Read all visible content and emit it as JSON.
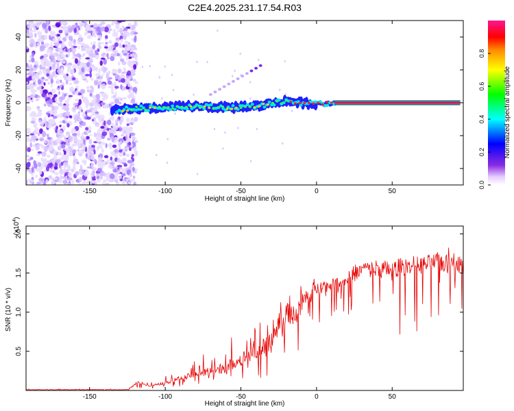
{
  "title": "C2E4.2025.231.17.54.R03",
  "colors": {
    "spectrogram_peak": "#dc143c",
    "scatter": "#6a00e8",
    "snr_line": "#e60000",
    "reference_line": "#000000"
  },
  "chart_data": [
    {
      "type": "heatmap",
      "xlabel": "Height of straight line (km)",
      "ylabel": "Frequency (Hz)",
      "xlim": [
        -192,
        97
      ],
      "ylim": [
        -50,
        50
      ],
      "x_ticks": [
        -150,
        -100,
        -50,
        0,
        50
      ],
      "y_ticks": [
        -40,
        -20,
        0,
        20,
        40
      ],
      "x_tick_labels": [
        "-150",
        "-100",
        "-50",
        "0",
        "50"
      ],
      "y_tick_labels": [
        "-40",
        "-20",
        "0",
        "20",
        "40"
      ],
      "colorbar": {
        "label": "Normalized spectral amplitude",
        "range": [
          0,
          1
        ],
        "ticks": [
          0.0,
          0.2,
          0.4,
          0.6,
          0.8
        ],
        "tick_labels": [
          "0.0",
          "0.2",
          "0.4",
          "0.6",
          "0.8"
        ],
        "colormap": "rainbow (white-violet-blue-cyan-green-yellow-red-magenta)"
      },
      "ridge": {
        "description": "main frequency trace",
        "x": [
          -135,
          -120,
          -100,
          -80,
          -60,
          -40,
          -20,
          -10,
          0,
          12,
          50,
          95
        ],
        "y": [
          -5,
          -3.5,
          -3,
          -2,
          -3,
          -2,
          1,
          0,
          -1,
          0,
          0,
          0
        ]
      },
      "reference_line": {
        "y": 0,
        "x_range": [
          12,
          95
        ]
      },
      "noise_region_x": [
        -192,
        -125
      ]
    },
    {
      "type": "line",
      "xlabel": "Height of straight line (km)",
      "ylabel": "SNR (10 * v/v)",
      "y_multiplier": "(x10",
      "y_multiplier_exp": "4",
      "y_multiplier_close": ")",
      "xlim": [
        -192,
        97
      ],
      "ylim": [
        0,
        2.1
      ],
      "x_ticks": [
        -150,
        -100,
        -50,
        0,
        50
      ],
      "y_ticks": [
        0.5,
        1.0,
        1.5,
        2.0
      ],
      "x_tick_labels": [
        "-150",
        "-100",
        "-50",
        "0",
        "50"
      ],
      "y_tick_labels": [
        "0.5",
        "1.0",
        "1.5",
        "2.0"
      ],
      "series": [
        {
          "x": [
            -192,
            -150,
            -125,
            -118,
            -110,
            -100,
            -90,
            -80,
            -70,
            -60,
            -50,
            -40,
            -30,
            -25,
            -20,
            -15,
            -10,
            -5,
            0,
            10,
            20,
            25,
            30,
            40,
            50,
            60,
            70,
            80,
            85,
            90,
            95
          ],
          "y": [
            0.01,
            0.01,
            0.01,
            0.1,
            0.06,
            0.1,
            0.15,
            0.2,
            0.25,
            0.3,
            0.4,
            0.5,
            0.6,
            0.9,
            1.0,
            0.95,
            1.1,
            1.2,
            1.3,
            1.35,
            1.4,
            1.5,
            1.55,
            1.55,
            1.55,
            1.6,
            1.6,
            1.65,
            1.6,
            1.75,
            1.6
          ],
          "envelope_max": [
            0.02,
            0.02,
            0.02,
            0.14,
            0.1,
            0.18,
            0.3,
            0.4,
            0.55,
            0.65,
            0.75,
            0.9,
            1.05,
            1.2,
            1.25,
            1.3,
            1.35,
            1.4,
            1.45,
            1.48,
            1.52,
            1.58,
            1.6,
            1.62,
            1.64,
            1.66,
            1.7,
            1.72,
            1.8,
            2.08,
            1.9
          ],
          "envelope_min": [
            0.0,
            0.0,
            0.0,
            0.02,
            0.02,
            0.02,
            0.03,
            0.05,
            0.05,
            0.08,
            0.08,
            0.05,
            0.05,
            0.06,
            0.2,
            0.3,
            0.05,
            0.5,
            0.8,
            0.9,
            1.0,
            0.7,
            0.8,
            0.6,
            0.8,
            0.6,
            0.8,
            0.8,
            1.0,
            0.75,
            1.0
          ]
        }
      ]
    }
  ]
}
